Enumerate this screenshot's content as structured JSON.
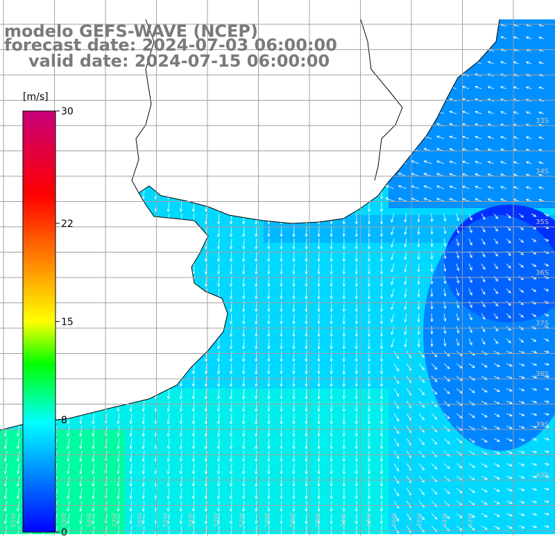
{
  "header": {
    "model_line": "modelo GEFS-WAVE (NCEP)",
    "forecast_line": "forecast date: 2024-07-03 06:00:00",
    "valid_line": "valid date: 2024-07-15 06:00:00"
  },
  "colorbar": {
    "unit": "[m/s]",
    "ticks": [
      {
        "label": "30",
        "value": 30
      },
      {
        "label": "22",
        "value": 22
      },
      {
        "label": "15",
        "value": 15
      },
      {
        "label": "8",
        "value": 8
      },
      {
        "label": "0",
        "value": 0
      }
    ],
    "stops": [
      "#0000ff",
      "#00ffff",
      "#00ff00",
      "#ffff00",
      "#ff8000",
      "#ff0000",
      "#c8007a"
    ]
  },
  "map": {
    "lon_range": [
      -62,
      -42
    ],
    "lat_range": [
      -41,
      -31
    ],
    "lat_labels": [
      "33S",
      "34S",
      "35S",
      "36S",
      "37S",
      "38S",
      "39S",
      "40S"
    ],
    "lon_labels": [
      "61W",
      "60W",
      "59W",
      "58W",
      "57W",
      "56W",
      "55W",
      "54W",
      "53W",
      "52W",
      "51W",
      "50W",
      "49W",
      "48W",
      "47W",
      "46W",
      "45W",
      "44W",
      "43W"
    ],
    "field_colors": {
      "land": "#ffffff",
      "grid": "#a0a0a0",
      "coast": "#000000",
      "arrow": "#ffffff"
    }
  }
}
